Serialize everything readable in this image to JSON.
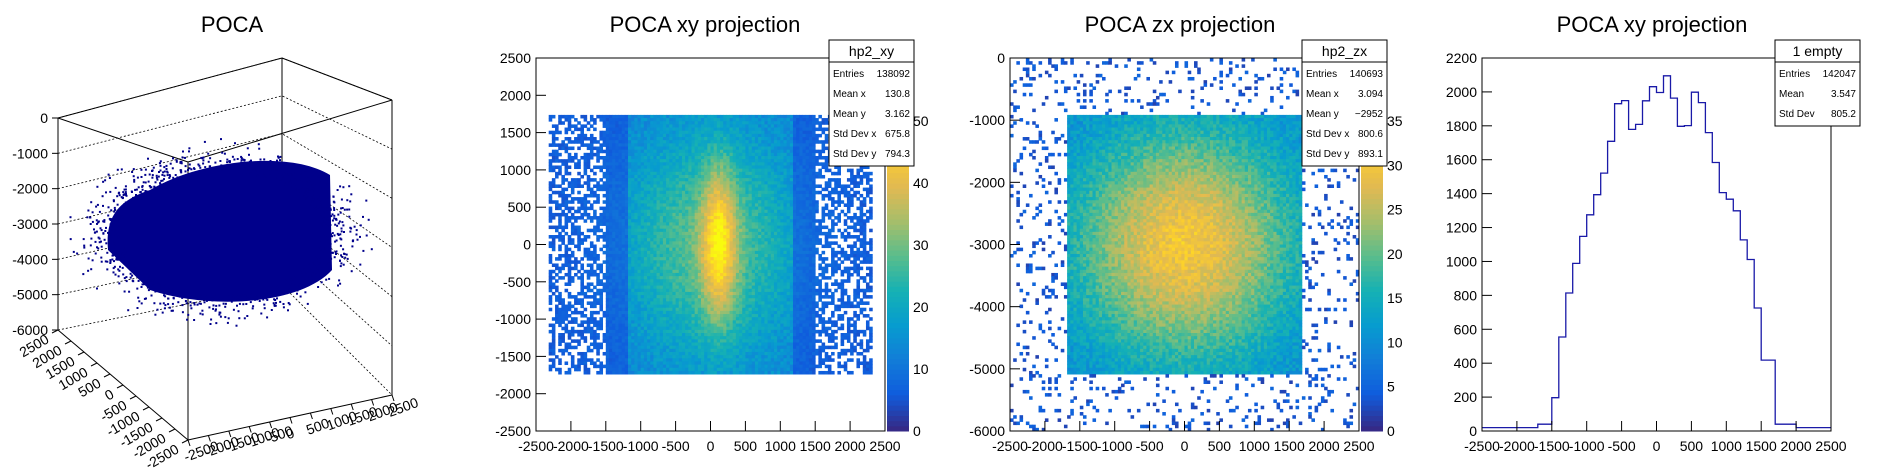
{
  "chart_data": [
    {
      "type": "scatter",
      "title": "POCA",
      "ztick_labels": [
        "0",
        "-1000",
        "-2000",
        "-3000",
        "-4000",
        "-5000",
        "-6000"
      ],
      "xtick_labels": [
        "2500",
        "2000",
        "1500",
        "1000",
        "500",
        "0",
        "-500",
        "-1000",
        "-1500",
        "-2000",
        "-2500"
      ],
      "ytick_labels": [
        "2500",
        "2000",
        "1500",
        "1000",
        "500",
        "0",
        "-500",
        "-1000",
        "-1500",
        "-2000",
        "-2500"
      ],
      "zlim": [
        -6000,
        0
      ],
      "xlim": [
        -2500,
        2500
      ],
      "ylim": [
        -2500,
        2500
      ],
      "color": "#00008b"
    },
    {
      "type": "heatmap",
      "title": "POCA xy projection",
      "xlim": [
        -2500,
        2500
      ],
      "ylim": [
        -2500,
        2500
      ],
      "xtick_labels": [
        "-2500",
        "-2000",
        "-1500",
        "-1000",
        "-500",
        "0",
        "500",
        "1000",
        "1500",
        "2000",
        "2500"
      ],
      "ytick_labels": [
        "2500",
        "2000",
        "1500",
        "1000",
        "500",
        "0",
        "-500",
        "-1000",
        "-1500",
        "-2000",
        "-2500"
      ],
      "zlim": [
        0,
        60
      ],
      "ztick_labels": [
        "50",
        "40",
        "30",
        "20",
        "10",
        "0"
      ],
      "stats": {
        "name": "hp2_xy",
        "rows": [
          {
            "label": "Entries",
            "value": "138092"
          },
          {
            "label": "Mean x",
            "value": "130.8"
          },
          {
            "label": "Mean y",
            "value": "3.162"
          },
          {
            "label": "Std Dev x",
            "value": "675.8"
          },
          {
            "label": "Std Dev y",
            "value": "794.3"
          }
        ]
      }
    },
    {
      "type": "heatmap",
      "title": "POCA zx projection",
      "xlim": [
        -2500,
        2500
      ],
      "ylim": [
        -6000,
        0
      ],
      "xtick_labels": [
        "-2500",
        "-2000",
        "-1500",
        "-1000",
        "-500",
        "0",
        "500",
        "1000",
        "1500",
        "2000",
        "2500"
      ],
      "ytick_labels": [
        "0",
        "-1000",
        "-2000",
        "-3000",
        "-4000",
        "-5000",
        "-6000"
      ],
      "zlim": [
        0,
        40
      ],
      "ztick_labels": [
        "35",
        "30",
        "25",
        "20",
        "15",
        "10",
        "5",
        "0"
      ],
      "stats": {
        "name": "hp2_zx",
        "rows": [
          {
            "label": "Entries",
            "value": "140693"
          },
          {
            "label": "Mean x",
            "value": "3.094"
          },
          {
            "label": "Mean y",
            "value": "−2952"
          },
          {
            "label": "Std Dev x",
            "value": "800.6"
          },
          {
            "label": "Std Dev y",
            "value": "893.1"
          }
        ]
      }
    },
    {
      "type": "line",
      "title": "POCA xy projection",
      "xlim": [
        -2500,
        2500
      ],
      "ylim": [
        0,
        2200
      ],
      "xtick_labels": [
        "-2500",
        "-2000",
        "-1500",
        "-1000",
        "-500",
        "0",
        "500",
        "1000",
        "1500",
        "2000",
        "2500"
      ],
      "ytick_labels": [
        "2200",
        "2000",
        "1800",
        "1600",
        "1400",
        "1200",
        "1000",
        "800",
        "600",
        "400",
        "200",
        "0"
      ],
      "x": [
        -2500,
        -2000,
        -1700,
        -1500,
        -1400,
        -1300,
        -1200,
        -1100,
        -1000,
        -900,
        -800,
        -700,
        -600,
        -500,
        -400,
        -300,
        -200,
        -100,
        0,
        100,
        200,
        300,
        400,
        500,
        600,
        700,
        800,
        900,
        1000,
        1100,
        1200,
        1300,
        1400,
        1500,
        1700,
        2000,
        2500
      ],
      "values": [
        20,
        20,
        40,
        200,
        560,
        820,
        1000,
        1150,
        1300,
        1400,
        1550,
        1700,
        1950,
        1950,
        1780,
        1780,
        1950,
        2050,
        2000,
        2100,
        1950,
        1800,
        1800,
        2000,
        1950,
        1750,
        1600,
        1400,
        1350,
        1300,
        1150,
        1000,
        700,
        400,
        40,
        20,
        20
      ],
      "line_color": "#1a1aa8",
      "stats": {
        "name": "1 empty",
        "rows": [
          {
            "label": "Entries",
            "value": "142047"
          },
          {
            "label": "Mean",
            "value": "3.547"
          },
          {
            "label": "Std Dev",
            "value": "805.2"
          }
        ]
      }
    }
  ]
}
